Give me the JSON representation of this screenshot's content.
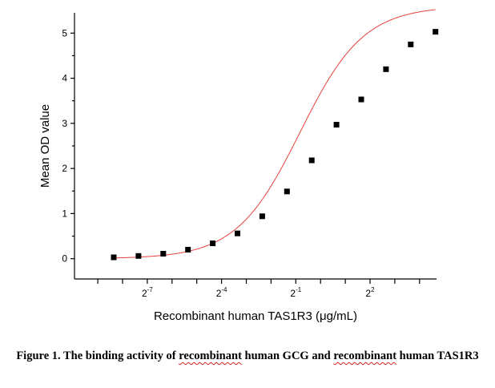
{
  "chart_data": {
    "type": "scatter",
    "xlabel": "Recombinant human TAS1R3 (μg/mL)",
    "ylabel": "Mean OD value",
    "x_scale": "log2",
    "x_ticks": [
      {
        "base": "2",
        "exp": "-7"
      },
      {
        "base": "2",
        "exp": "-4"
      },
      {
        "base": "2",
        "exp": "-1"
      },
      {
        "base": "2",
        "exp": "2"
      }
    ],
    "y_ticks": [
      "0",
      "1",
      "2",
      "3",
      "4",
      "5"
    ],
    "ylim": [
      -0.45,
      5.45
    ],
    "x": [
      0.00391,
      0.00781,
      0.01563,
      0.03125,
      0.0625,
      0.125,
      0.25,
      0.5,
      1,
      2,
      4,
      8,
      16,
      32
    ],
    "x_exponents": [
      -8,
      -7,
      -6,
      -5,
      -4,
      -3,
      -2,
      -1,
      0,
      1,
      2,
      3,
      4,
      5
    ],
    "values": [
      0.03,
      0.06,
      0.11,
      0.2,
      0.34,
      0.56,
      0.94,
      1.49,
      2.18,
      2.97,
      3.53,
      4.2,
      4.75,
      5.03
    ],
    "series": [
      {
        "kind": "points",
        "marker": "square",
        "color": "#000000"
      },
      {
        "kind": "fit",
        "color": "#e8413c"
      }
    ]
  },
  "caption": {
    "prefix": "Figure 1. The binding activity of ",
    "word1": "recombinant",
    "middle": " human GCG and ",
    "word2": "recombinant",
    "suffix": " human TAS1R3"
  }
}
